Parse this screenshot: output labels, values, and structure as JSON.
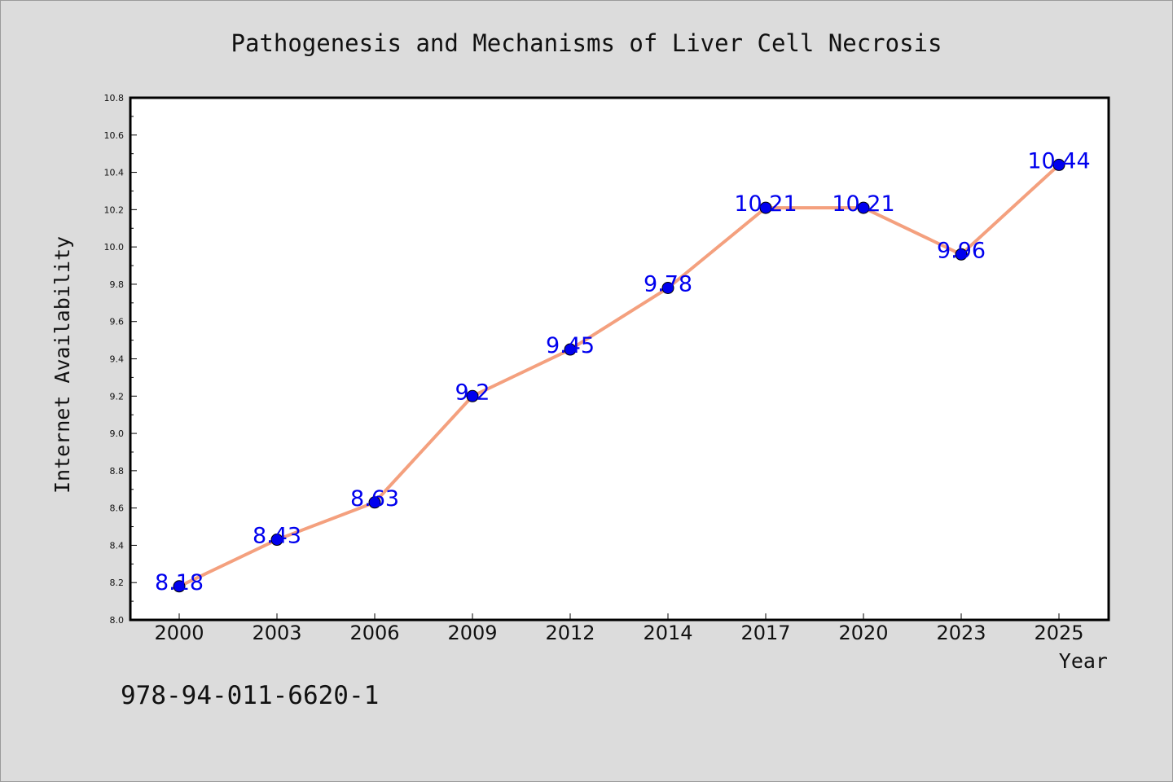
{
  "chart_data": {
    "type": "line",
    "title": "Pathogenesis and Mechanisms of Liver Cell Necrosis",
    "xlabel": "Year",
    "ylabel": "Internet Availability",
    "categories": [
      "2000",
      "2003",
      "2006",
      "2009",
      "2012",
      "2014",
      "2017",
      "2020",
      "2023",
      "2025"
    ],
    "series": [
      {
        "values": [
          8.18,
          8.43,
          8.63,
          9.2,
          9.45,
          9.78,
          10.21,
          10.21,
          9.96,
          10.44
        ]
      }
    ],
    "data_labels": [
      "8.18",
      "8.43",
      "8.63",
      "9.2",
      "9.45",
      "9.78",
      "10.21",
      "10.21",
      "9.96",
      "10.44"
    ],
    "ylim": [
      8.0,
      10.8
    ],
    "yticks": [
      "8.0",
      "8.2",
      "8.4",
      "8.6",
      "8.8",
      "9.0",
      "9.2",
      "9.4",
      "9.6",
      "9.8",
      "10.0",
      "10.2",
      "10.4",
      "10.6",
      "10.8"
    ],
    "grid": false,
    "line_color": "#f4a07e",
    "marker_color": "#0000ee",
    "label_color": "#0000ee",
    "footer_text": "978-94-011-6620-1"
  }
}
